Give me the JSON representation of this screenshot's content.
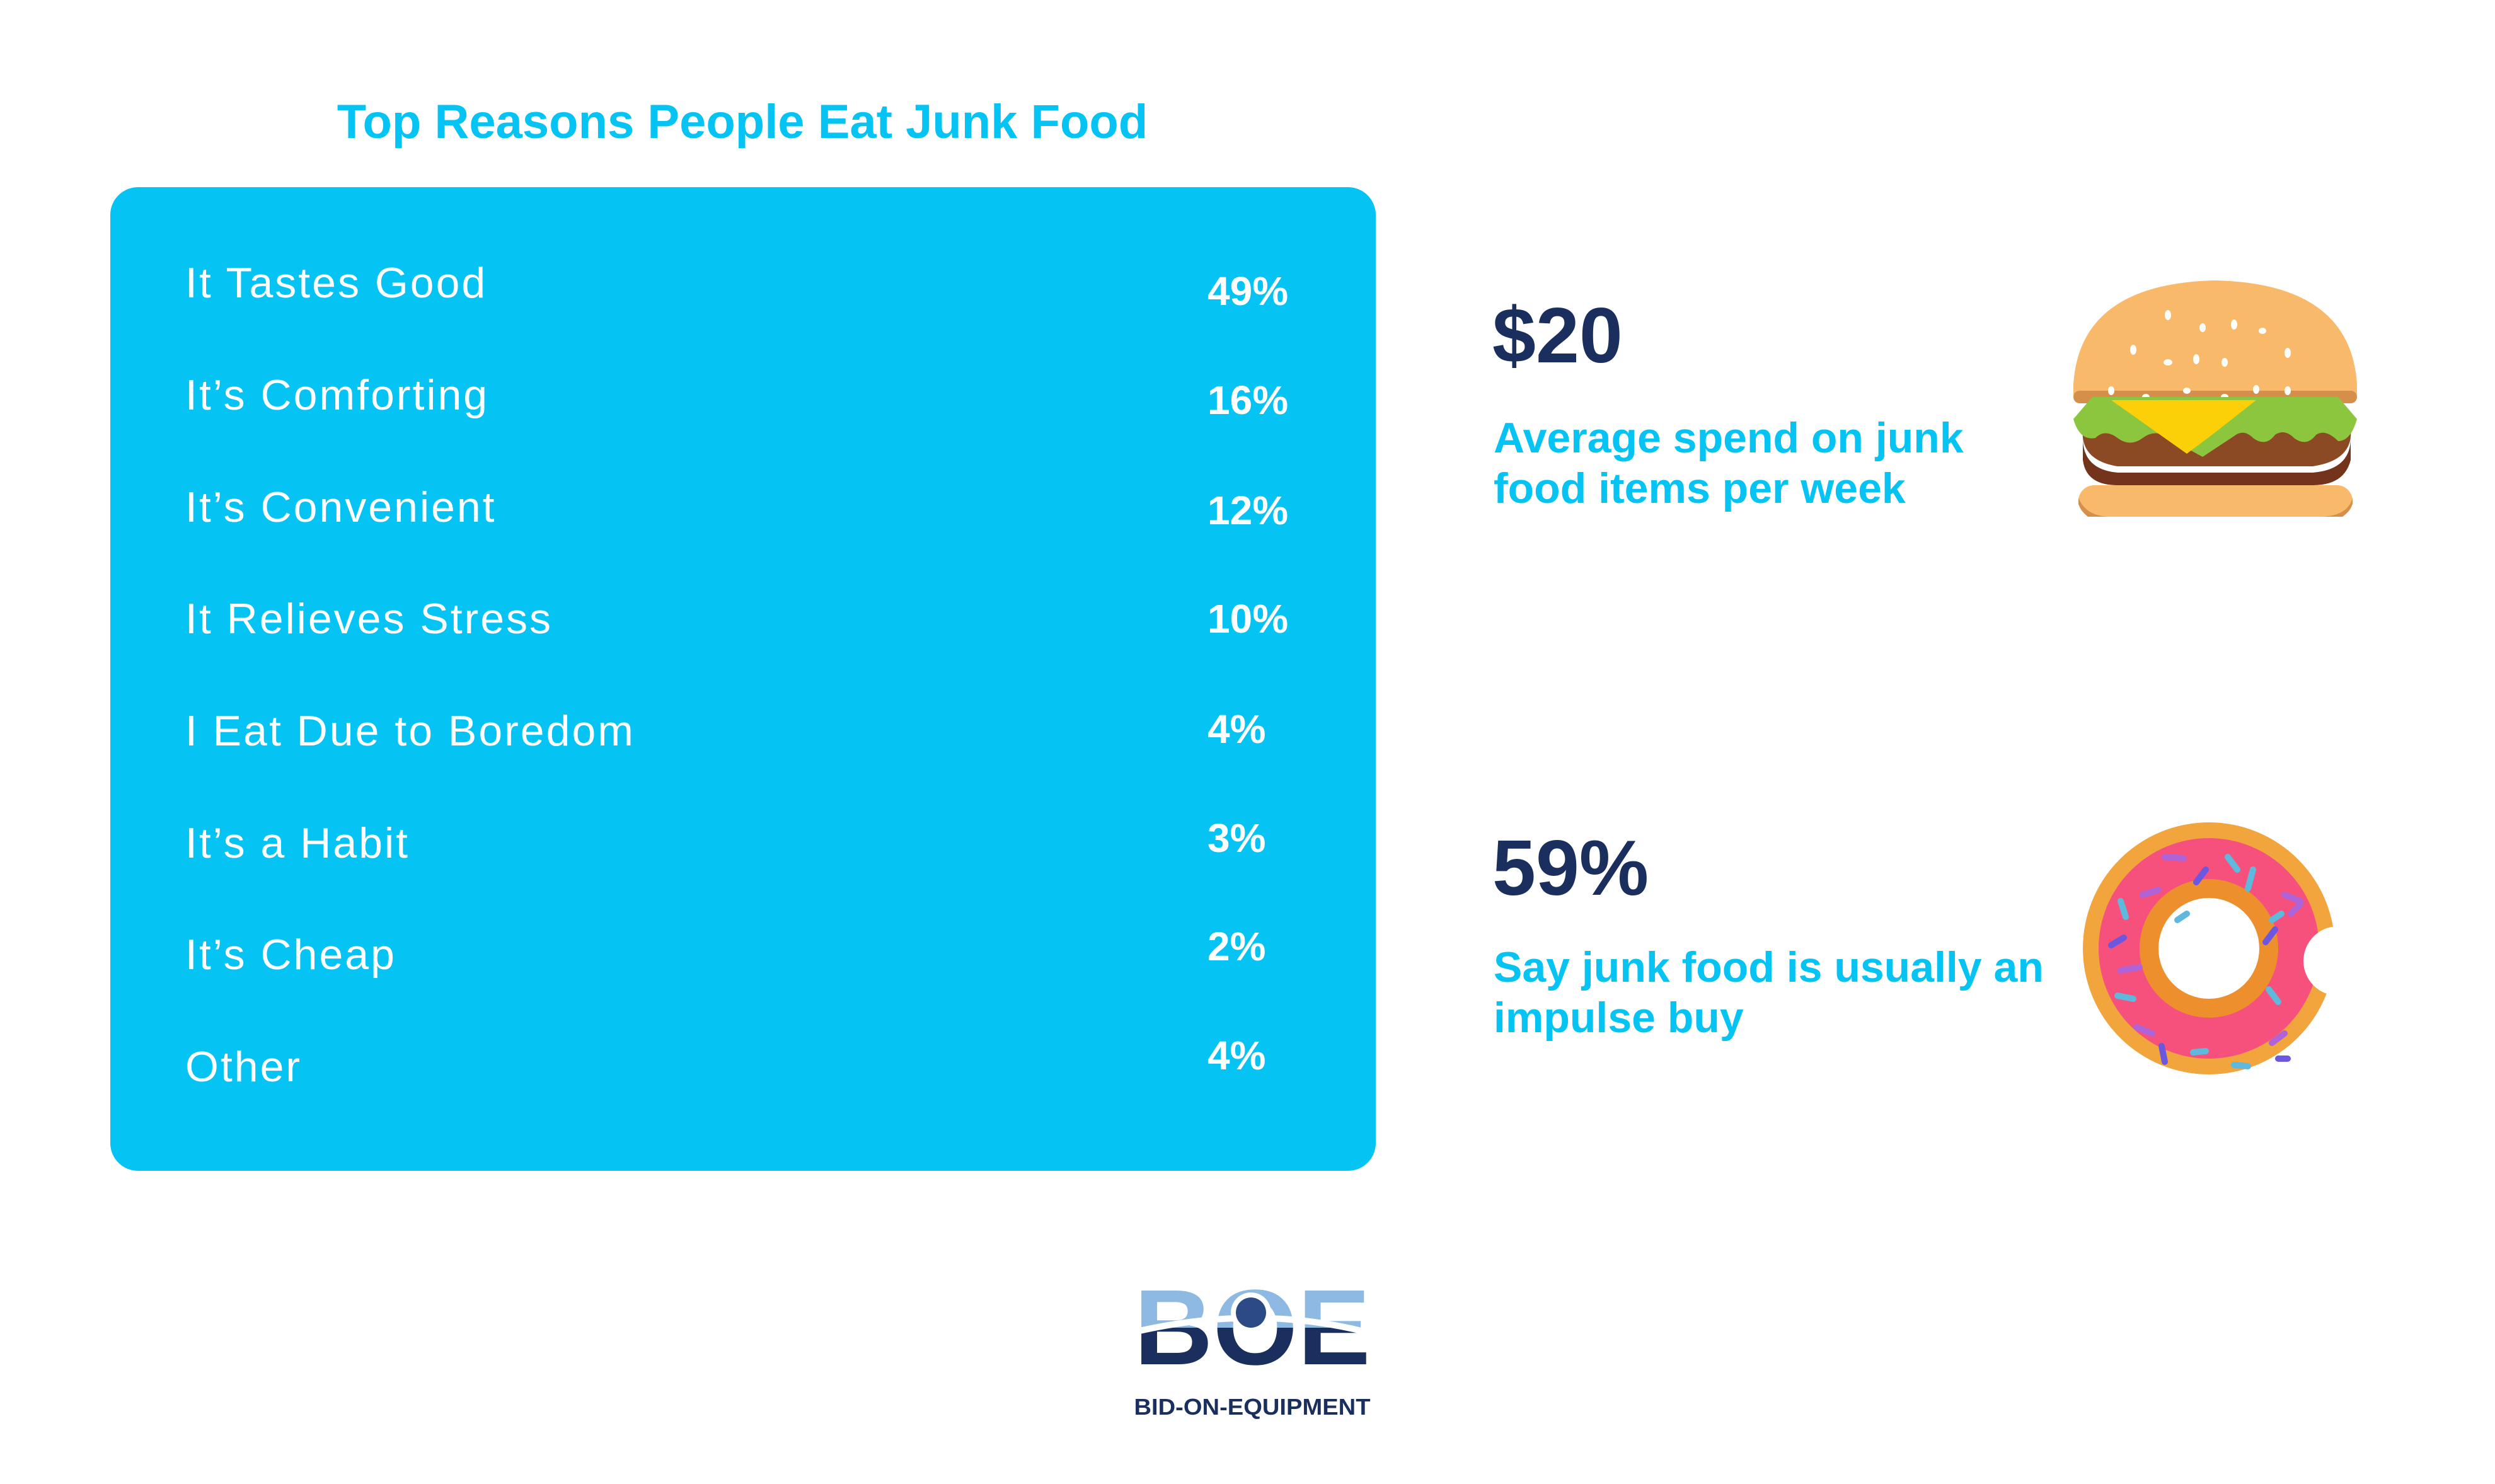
{
  "title": "Top Reasons People Eat Junk Food",
  "reasons": [
    {
      "label": "It Tastes Good",
      "value": "49%"
    },
    {
      "label": "It’s Comforting",
      "value": "16%"
    },
    {
      "label": "It’s Convenient",
      "value": "12%"
    },
    {
      "label": "It Relieves Stress",
      "value": "10%"
    },
    {
      "label": "I Eat Due to Boredom",
      "value": "4%"
    },
    {
      "label": "It’s a Habit",
      "value": "3%"
    },
    {
      "label": "It’s Cheap",
      "value": "2%"
    },
    {
      "label": "Other",
      "value": "4%"
    }
  ],
  "stats": [
    {
      "value": "$20",
      "description": "Average spend on junk food items per week",
      "icon": "burger-icon"
    },
    {
      "value": "59%",
      "description": "Say junk food is usually an impulse buy",
      "icon": "donut-icon"
    }
  ],
  "logo": {
    "letters": "BOE",
    "tagline": "BID-ON-EQUIPMENT"
  },
  "colors": {
    "accent": "#05c3f2",
    "navy": "#1b2f5e",
    "logo_light": "#8db9e2"
  }
}
